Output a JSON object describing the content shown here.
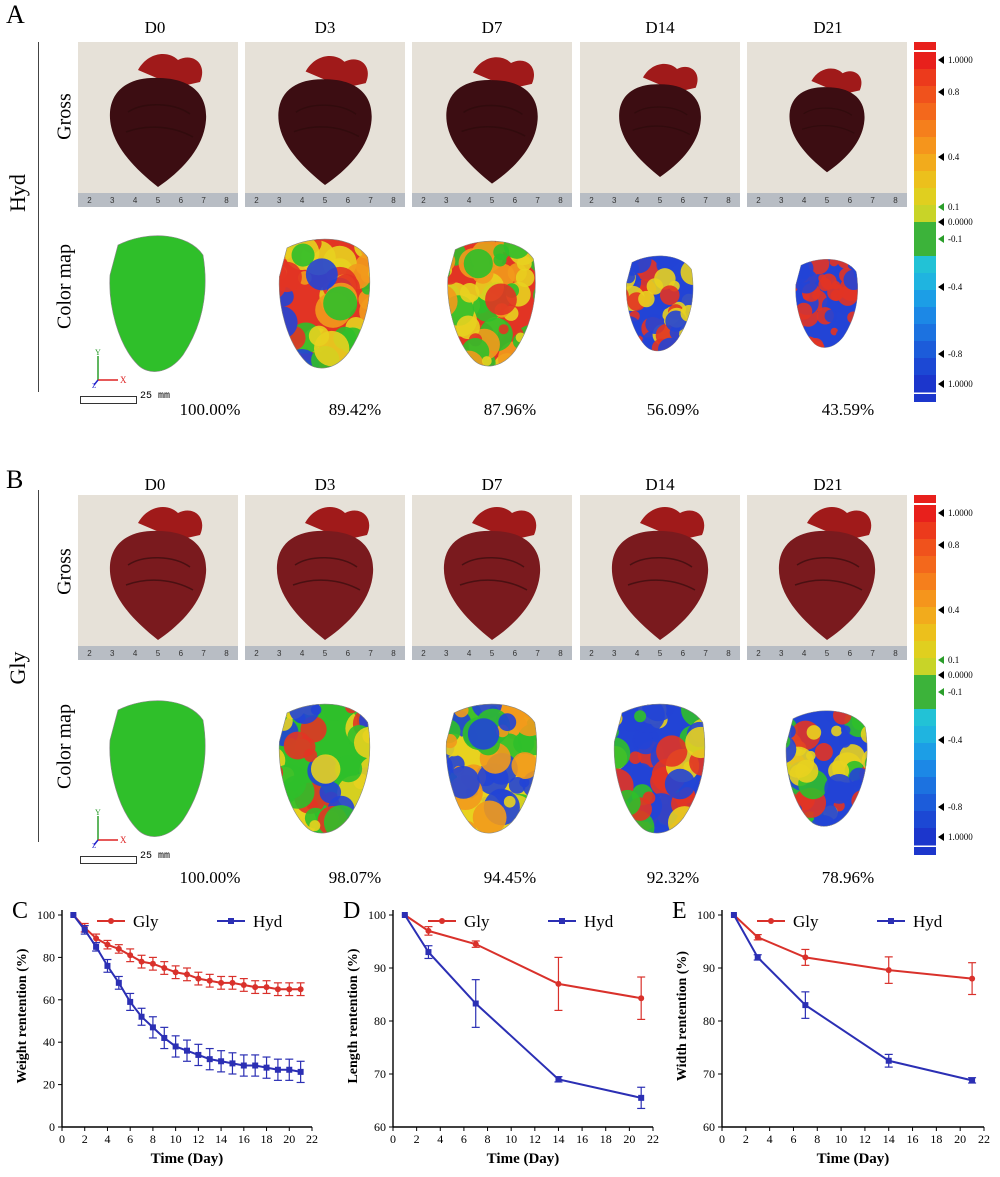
{
  "panels": {
    "A": {
      "letter": "A",
      "group": "Hyd",
      "row_gross": "Gross",
      "row_map": "Color map",
      "days": [
        "D0",
        "D3",
        "D7",
        "D14",
        "D21"
      ],
      "percents": [
        "100.00%",
        "89.42%",
        "87.96%",
        "56.09%",
        "43.59%"
      ],
      "scale": "25 mm"
    },
    "B": {
      "letter": "B",
      "group": "Gly",
      "row_gross": "Gross",
      "row_map": "Color map",
      "days": [
        "D0",
        "D3",
        "D7",
        "D14",
        "D21"
      ],
      "percents": [
        "100.00%",
        "98.07%",
        "94.45%",
        "92.32%",
        "78.96%"
      ],
      "scale": "25 mm"
    }
  },
  "legend_ticks": [
    "1.0000",
    "0.8",
    "0.4",
    "0.1",
    "0.0000",
    "-0.1",
    "-0.4",
    "-0.8",
    "1.0000"
  ],
  "ruler_marks": [
    "2",
    "3",
    "4",
    "5",
    "6",
    "7",
    "8"
  ],
  "axis_triad": {
    "x": "X",
    "y": "Y",
    "z": "Z"
  },
  "colors": {
    "gly": "#d9312b",
    "hyd": "#2b2fb4",
    "map_green": "#2fbf2a",
    "heart_dark": "#3c0d12",
    "heart_red": "#7a1a1e"
  },
  "chart_data": [
    {
      "letter": "C",
      "type": "line",
      "xlabel": "Time (Day)",
      "ylabel": "Weight rentention (%)",
      "xlim": [
        0,
        22
      ],
      "ylim": [
        0,
        100
      ],
      "xticks": [
        0,
        2,
        4,
        6,
        8,
        10,
        12,
        14,
        16,
        18,
        20,
        22
      ],
      "yticks": [
        0,
        20,
        40,
        60,
        80,
        100
      ],
      "legend": "top",
      "series": [
        {
          "name": "Gly",
          "marker": "circle",
          "x": [
            1,
            2,
            3,
            4,
            5,
            6,
            7,
            8,
            9,
            10,
            11,
            12,
            13,
            14,
            15,
            16,
            17,
            18,
            19,
            20,
            21
          ],
          "y": [
            100,
            94,
            89,
            86,
            84,
            81,
            78,
            77,
            75,
            73,
            72,
            70,
            69,
            68,
            68,
            67,
            66,
            66,
            65,
            65,
            65
          ],
          "err": [
            0,
            2,
            2,
            2,
            2,
            3,
            3,
            3,
            3,
            3,
            3,
            3,
            3,
            3,
            3,
            3,
            3,
            3,
            3,
            3,
            3
          ]
        },
        {
          "name": "Hyd",
          "marker": "square",
          "x": [
            1,
            2,
            3,
            4,
            5,
            6,
            7,
            8,
            9,
            10,
            11,
            12,
            13,
            14,
            15,
            16,
            17,
            18,
            19,
            20,
            21
          ],
          "y": [
            100,
            93,
            85,
            76,
            68,
            59,
            52,
            47,
            42,
            38,
            36,
            34,
            32,
            31,
            30,
            29,
            29,
            28,
            27,
            27,
            26
          ],
          "err": [
            0,
            2,
            2,
            3,
            3,
            4,
            4,
            5,
            5,
            5,
            5,
            5,
            5,
            5,
            5,
            5,
            5,
            5,
            5,
            5,
            5
          ]
        }
      ]
    },
    {
      "letter": "D",
      "type": "line",
      "xlabel": "Time (Day)",
      "ylabel": "Length rentention (%)",
      "xlim": [
        0,
        22
      ],
      "ylim": [
        60,
        100
      ],
      "xticks": [
        0,
        2,
        4,
        6,
        8,
        10,
        12,
        14,
        16,
        18,
        20,
        22
      ],
      "yticks": [
        60,
        70,
        80,
        90,
        100
      ],
      "legend": "top",
      "series": [
        {
          "name": "Gly",
          "marker": "circle",
          "x": [
            1,
            3,
            7,
            14,
            21
          ],
          "y": [
            100,
            97,
            94.5,
            87,
            84.3
          ],
          "err": [
            0,
            0.8,
            0.6,
            5,
            4
          ]
        },
        {
          "name": "Hyd",
          "marker": "square",
          "x": [
            1,
            3,
            7,
            14,
            21
          ],
          "y": [
            100,
            93,
            83.3,
            69,
            65.5
          ],
          "err": [
            0,
            1.2,
            4.5,
            0.5,
            2
          ]
        }
      ]
    },
    {
      "letter": "E",
      "type": "line",
      "xlabel": "Time (Day)",
      "ylabel": "Width rentention (%)",
      "xlim": [
        0,
        22
      ],
      "ylim": [
        60,
        100
      ],
      "xticks": [
        0,
        2,
        4,
        6,
        8,
        10,
        12,
        14,
        16,
        18,
        20,
        22
      ],
      "yticks": [
        60,
        70,
        80,
        90,
        100
      ],
      "legend": "top",
      "series": [
        {
          "name": "Gly",
          "marker": "circle",
          "x": [
            1,
            3,
            7,
            14,
            21
          ],
          "y": [
            100,
            95.8,
            92,
            89.6,
            88
          ],
          "err": [
            0,
            0.5,
            1.5,
            2.5,
            3
          ]
        },
        {
          "name": "Hyd",
          "marker": "square",
          "x": [
            1,
            3,
            7,
            14,
            21
          ],
          "y": [
            100,
            92,
            83,
            72.5,
            68.8
          ],
          "err": [
            0,
            0.5,
            2.5,
            1.2,
            0.5
          ]
        }
      ]
    }
  ]
}
